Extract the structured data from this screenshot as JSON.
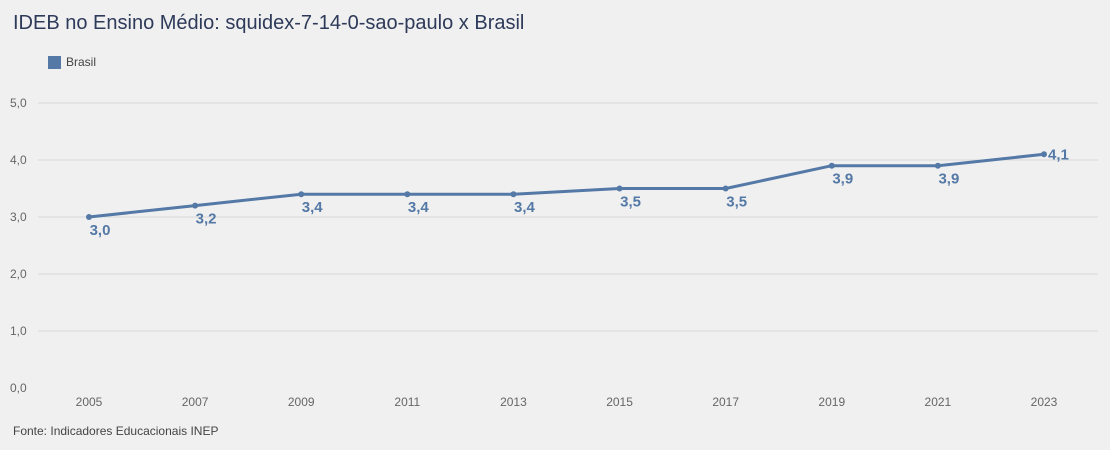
{
  "header": {
    "title": "IDEB no Ensino Médio: squidex-7-14-0-sao-paulo x Brasil"
  },
  "footer": {
    "source": "Fonte: Indicadores Educacionais INEP"
  },
  "colors": {
    "series": "#5479a6",
    "grid": "#d9d9d9",
    "background": "#f0f0f0",
    "tick_text": "#666666"
  },
  "chart_data": {
    "type": "line",
    "x": [
      "2005",
      "2007",
      "2009",
      "2011",
      "2013",
      "2015",
      "2017",
      "2019",
      "2021",
      "2023"
    ],
    "series": [
      {
        "name": "Brasil",
        "values": [
          3.0,
          3.2,
          3.4,
          3.4,
          3.4,
          3.5,
          3.5,
          3.9,
          3.9,
          4.1
        ],
        "labels": [
          "3,0",
          "3,2",
          "3,4",
          "3,4",
          "3,4",
          "3,5",
          "3,5",
          "3,9",
          "3,9",
          "4,1"
        ]
      }
    ],
    "ylim": [
      0,
      5
    ],
    "yticks": [
      0,
      1,
      2,
      3,
      4,
      5
    ],
    "ytick_labels": [
      "0,0",
      "1,0",
      "2,0",
      "3,0",
      "4,0",
      "5,0"
    ],
    "grid": true,
    "legend_position": "top-left"
  }
}
